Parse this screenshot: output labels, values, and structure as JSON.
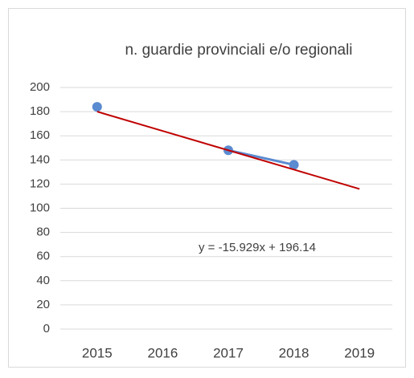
{
  "chart_data": {
    "type": "line",
    "title": "n. guardie provinciali e/o regionali",
    "categories": [
      "2015",
      "2016",
      "2017",
      "2018",
      "2019"
    ],
    "series": [
      {
        "color": "#5b8bd0",
        "values": [
          184,
          null,
          148,
          136,
          null
        ]
      }
    ],
    "trendline": {
      "color": "#c00000",
      "label": "y = -15.929x + 196.14",
      "values": [
        180,
        164,
        148,
        132,
        116
      ]
    },
    "ylim": [
      0,
      200
    ],
    "yticks": [
      0,
      20,
      40,
      60,
      80,
      100,
      120,
      140,
      160,
      180,
      200
    ],
    "grid": true
  }
}
